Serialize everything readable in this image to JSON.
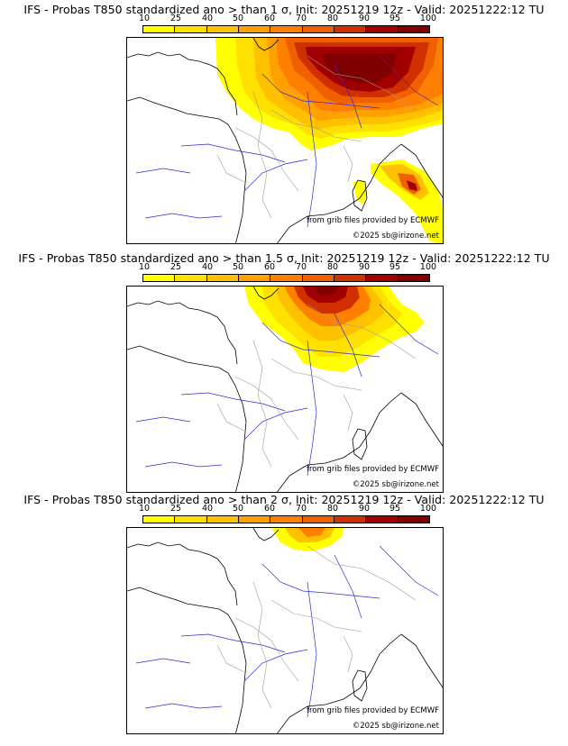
{
  "panels": [
    {
      "title": "IFS - Probas T850  standardized ano > than 1 σ, Init: 20251219 12z - Valid: 20251222:12 TU",
      "threshold_sigma": 1,
      "credit_source": "from grib files provided by ECMWF",
      "credit_site": "©2025 sb@irizone.net"
    },
    {
      "title": "IFS - Probas T850  standardized ano > than 1.5 σ, Init: 20251219 12z - Valid: 20251222:12 TU",
      "threshold_sigma": 1.5,
      "credit_source": "from grib files provided by ECMWF",
      "credit_site": "©2025 sb@irizone.net"
    },
    {
      "title": "IFS - Probas T850  standardized ano > than 2 σ, Init: 20251219 12z - Valid: 20251222:12 TU",
      "threshold_sigma": 2,
      "credit_source": "from grib files provided by ECMWF",
      "credit_site": "©2025 sb@irizone.net"
    }
  ],
  "colorbar": {
    "labels": [
      "10",
      "25",
      "40",
      "50",
      "60",
      "70",
      "80",
      "90",
      "95",
      "100"
    ],
    "colors": [
      "#ffff00",
      "#ffe000",
      "#ffc000",
      "#ffa000",
      "#ff8000",
      "#f06000",
      "#d03000",
      "#a00000",
      "#800000"
    ]
  },
  "map_colors": {
    "coast": "#000000",
    "rivers": "#2a2ad8",
    "borders": "#9a9a9a"
  }
}
